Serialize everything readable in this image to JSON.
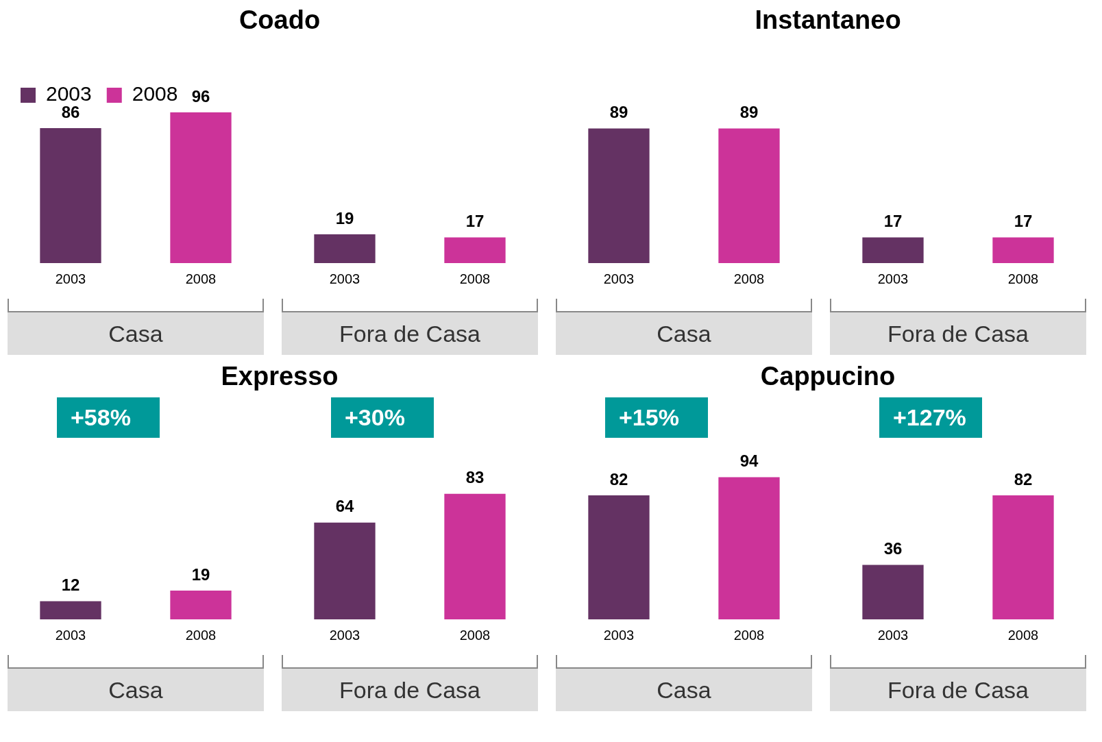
{
  "chart_data": [
    {
      "type": "bar",
      "title": "Coado",
      "xlabel": "Casa",
      "categories": [
        "2003",
        "2008"
      ],
      "stacked": true,
      "series": [
        {
          "name": "2003",
          "color": "#643263",
          "values": [
            86,
            null
          ]
        },
        {
          "name": "2008",
          "color": "#cc3399",
          "values": [
            null,
            96
          ]
        }
      ],
      "data_labels": true,
      "legend": "top left"
    },
    {
      "type": "bar",
      "xlabel": "Fora de Casa",
      "categories": [
        "2003",
        "2008"
      ],
      "values": [
        19,
        17
      ],
      "colors": [
        "#643263",
        "#cc3399"
      ],
      "data_labels": true
    },
    {
      "type": "bar",
      "title": "Instantaneo",
      "xlabel": "Casa",
      "categories": [
        "2003",
        "2008"
      ],
      "values": [
        89,
        89
      ],
      "colors": [
        "#643263",
        "#cc3399"
      ],
      "data_labels": true
    },
    {
      "type": "bar",
      "xlabel": "Fora de Casa",
      "categories": [
        "2003",
        "2008"
      ],
      "values": [
        17,
        17
      ],
      "colors": [
        "#643263",
        "#cc3399"
      ],
      "data_labels": true
    },
    {
      "type": "bar",
      "title": "Expresso",
      "xlabel": "Casa",
      "categories": [
        "2003",
        "2008"
      ],
      "values": [
        12,
        19
      ],
      "colors": [
        "#643263",
        "#cc3399"
      ],
      "data_labels": true,
      "annotations": [
        "+58%"
      ]
    },
    {
      "type": "bar",
      "xlabel": "Fora de Casa",
      "categories": [
        "2003",
        "2008"
      ],
      "values": [
        64,
        83
      ],
      "colors": [
        "#643263",
        "#cc3399"
      ],
      "data_labels": true,
      "annotations": [
        "+30%"
      ]
    },
    {
      "type": "bar",
      "title": "Cappucino",
      "xlabel": "Casa",
      "categories": [
        "2003",
        "2008"
      ],
      "values": [
        82,
        94
      ],
      "colors": [
        "#643263",
        "#cc3399"
      ],
      "data_labels": true,
      "annotations": [
        "+15%"
      ]
    },
    {
      "type": "bar",
      "xlabel": "Fora de Casa",
      "categories": [
        "2003",
        "2008"
      ],
      "values": [
        36,
        82
      ],
      "colors": [
        "#643263",
        "#cc3399"
      ],
      "data_labels": true,
      "annotations": [
        "+127%"
      ]
    }
  ]
}
